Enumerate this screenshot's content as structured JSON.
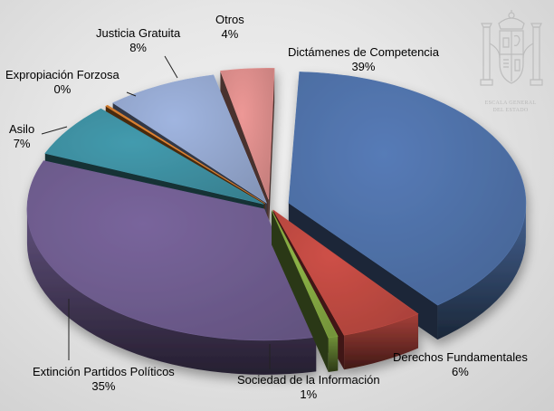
{
  "colors": {
    "background": "#e6e6e6",
    "dictamenes": "#4d6ea3",
    "derechos": "#b8473f",
    "sociedad": "#7ea13f",
    "extincion": "#6c5a8b",
    "asilo": "#3c8a9b",
    "expropiacion": "#cf7a2f",
    "justicia": "#8fa2c8",
    "otros": "#d48886"
  },
  "emblem": {
    "icon": "spanish-coat-of-arms-icon",
    "text_line1": "ESCALA GENERAL",
    "text_line2": "DEL ESTADO"
  },
  "chart_data": {
    "type": "pie",
    "style": "3d-exploded",
    "title": "",
    "legend": "none",
    "slices": [
      {
        "key": "dictamenes",
        "name": "Dictámenes de Competencia",
        "pct_label": "39%",
        "value": 39
      },
      {
        "key": "derechos",
        "name": "Derechos Fundamentales",
        "pct_label": "6%",
        "value": 6
      },
      {
        "key": "sociedad",
        "name": "Sociedad de la Información",
        "pct_label": "1%",
        "value": 1
      },
      {
        "key": "extincion",
        "name": "Extinción Partidos Políticos",
        "pct_label": "35%",
        "value": 35
      },
      {
        "key": "asilo",
        "name": "Asilo",
        "pct_label": "7%",
        "value": 7
      },
      {
        "key": "expropiacion",
        "name": "Expropiación Forzosa",
        "pct_label": "0%",
        "value": 0.5
      },
      {
        "key": "justicia",
        "name": "Justicia Gratuita",
        "pct_label": "8%",
        "value": 8
      },
      {
        "key": "otros",
        "name": "Otros",
        "pct_label": "4%",
        "value": 4
      }
    ]
  }
}
